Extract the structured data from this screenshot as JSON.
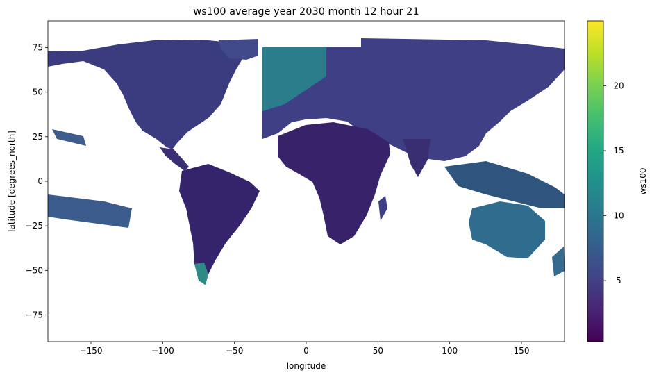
{
  "chart_data": {
    "type": "heatmap",
    "title": "ws100 average year 2030 month 12 hour 21",
    "xlabel": "longitude",
    "ylabel": "latitude [degrees_north]",
    "xlim": [
      -180,
      180
    ],
    "ylim": [
      -90,
      90
    ],
    "xticks": [
      -150,
      -100,
      -50,
      0,
      50,
      100,
      150
    ],
    "xtick_labels": [
      "−150",
      "−100",
      "−50",
      "0",
      "50",
      "100",
      "150"
    ],
    "yticks": [
      75,
      50,
      25,
      0,
      -25,
      -50,
      -75
    ],
    "ytick_labels": [
      "75",
      "50",
      "25",
      "0",
      "−25",
      "−50",
      "−75"
    ],
    "colorbar": {
      "label": "ws100",
      "colormap": "viridis",
      "range": [
        0.3,
        25
      ],
      "ticks": [
        5,
        10,
        15,
        20
      ],
      "tick_labels": [
        "5",
        "10",
        "15",
        "20"
      ]
    },
    "grid": false,
    "background": "#ffffff",
    "land_regions": [
      {
        "name": "North America",
        "lon_range": [
          -170,
          -55
        ],
        "lat_range": [
          10,
          80
        ],
        "approx_value": 6
      },
      {
        "name": "South America",
        "lon_range": [
          -82,
          -34
        ],
        "lat_range": [
          -56,
          12
        ],
        "approx_value": 4
      },
      {
        "name": "Europe/Asia",
        "lon_range": [
          -30,
          180
        ],
        "lat_range": [
          5,
          80
        ],
        "approx_value": 6
      },
      {
        "name": "Africa",
        "lon_range": [
          -18,
          52
        ],
        "lat_range": [
          -35,
          37
        ],
        "approx_value": 3
      },
      {
        "name": "Australia",
        "lon_range": [
          113,
          154
        ],
        "lat_range": [
          -44,
          -10
        ],
        "approx_value": 8
      }
    ]
  }
}
